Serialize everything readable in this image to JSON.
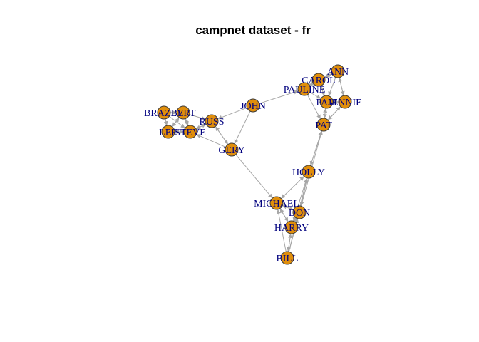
{
  "title": "campnet dataset - fr",
  "colors": {
    "node_fill": "#e08e0b",
    "label": "#00007f",
    "edge": "#a6a6a6"
  },
  "nodes": [
    {
      "id": "BRAZEY",
      "label": "BRAZEY"
    },
    {
      "id": "BERT",
      "label": "BERT"
    },
    {
      "id": "LEE",
      "label": "LEE"
    },
    {
      "id": "STEVE",
      "label": "STEVE"
    },
    {
      "id": "RUSS",
      "label": "RUSS"
    },
    {
      "id": "JOHN",
      "label": "JOHN"
    },
    {
      "id": "GERY",
      "label": "GERY"
    },
    {
      "id": "PAULINE",
      "label": "PAULINE"
    },
    {
      "id": "CAROL",
      "label": "CAROL"
    },
    {
      "id": "ANN",
      "label": "ANN"
    },
    {
      "id": "PAM",
      "label": "PAM"
    },
    {
      "id": "JENNIE",
      "label": "JENNIE"
    },
    {
      "id": "PAT",
      "label": "PAT"
    },
    {
      "id": "HOLLY",
      "label": "HOLLY"
    },
    {
      "id": "MICHAEL",
      "label": "MICHAEL"
    },
    {
      "id": "DON",
      "label": "DON"
    },
    {
      "id": "HARRY",
      "label": "HARRY"
    },
    {
      "id": "BILL",
      "label": "BILL"
    }
  ],
  "edges": [
    [
      "BRAZEY",
      "BERT"
    ],
    [
      "BRAZEY",
      "LEE"
    ],
    [
      "BRAZEY",
      "STEVE"
    ],
    [
      "BERT",
      "LEE"
    ],
    [
      "BERT",
      "STEVE"
    ],
    [
      "BERT",
      "RUSS"
    ],
    [
      "LEE",
      "STEVE"
    ],
    [
      "LEE",
      "BERT"
    ],
    [
      "STEVE",
      "BERT"
    ],
    [
      "STEVE",
      "RUSS"
    ],
    [
      "STEVE",
      "LEE"
    ],
    [
      "RUSS",
      "STEVE"
    ],
    [
      "RUSS",
      "GERY"
    ],
    [
      "GERY",
      "RUSS"
    ],
    [
      "GERY",
      "STEVE"
    ],
    [
      "JOHN",
      "RUSS"
    ],
    [
      "JOHN",
      "GERY"
    ],
    [
      "JOHN",
      "PAULINE"
    ],
    [
      "GERY",
      "MICHAEL"
    ],
    [
      "PAULINE",
      "CAROL"
    ],
    [
      "PAULINE",
      "PAM"
    ],
    [
      "PAULINE",
      "PAT"
    ],
    [
      "CAROL",
      "PAULINE"
    ],
    [
      "CAROL",
      "ANN"
    ],
    [
      "CAROL",
      "PAM"
    ],
    [
      "ANN",
      "PAM"
    ],
    [
      "ANN",
      "JENNIE"
    ],
    [
      "ANN",
      "CAROL"
    ],
    [
      "PAM",
      "JENNIE"
    ],
    [
      "PAM",
      "PAT"
    ],
    [
      "PAM",
      "CAROL"
    ],
    [
      "JENNIE",
      "PAM"
    ],
    [
      "JENNIE",
      "ANN"
    ],
    [
      "JENNIE",
      "PAT"
    ],
    [
      "PAT",
      "PAM"
    ],
    [
      "PAT",
      "HOLLY"
    ],
    [
      "PAT",
      "JENNIE"
    ],
    [
      "HOLLY",
      "PAT"
    ],
    [
      "HOLLY",
      "MICHAEL"
    ],
    [
      "HOLLY",
      "DON"
    ],
    [
      "HOLLY",
      "HARRY"
    ],
    [
      "MICHAEL",
      "HOLLY"
    ],
    [
      "MICHAEL",
      "DON"
    ],
    [
      "MICHAEL",
      "HARRY"
    ],
    [
      "DON",
      "MICHAEL"
    ],
    [
      "DON",
      "HARRY"
    ],
    [
      "DON",
      "PAT"
    ],
    [
      "HARRY",
      "MICHAEL"
    ],
    [
      "HARRY",
      "DON"
    ],
    [
      "HARRY",
      "BILL"
    ],
    [
      "BILL",
      "MICHAEL"
    ],
    [
      "BILL",
      "DON"
    ],
    [
      "BILL",
      "HARRY"
    ],
    [
      "BILL",
      "HOLLY"
    ]
  ]
}
